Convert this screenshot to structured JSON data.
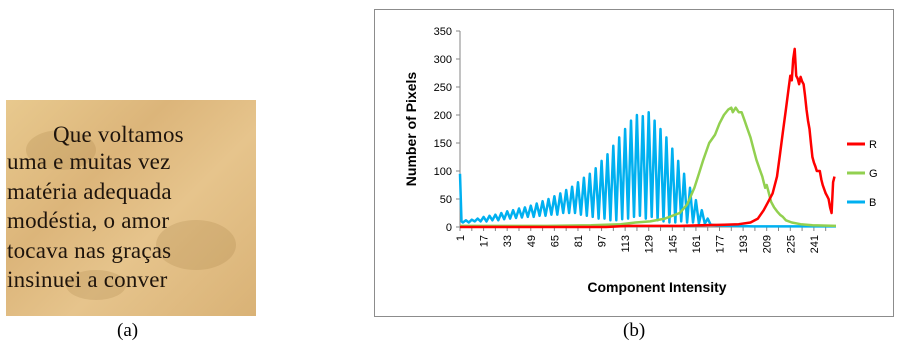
{
  "panel_a": {
    "lines": [
      "Que  voltamos",
      "uma e muitas vez",
      "matéria adequada",
      "modéstia, o amor",
      "tocava nas graças",
      "insinuei  a  conver"
    ],
    "caption": "(a)"
  },
  "panel_b": {
    "caption": "(b)"
  },
  "chart_data": {
    "type": "line",
    "title": "",
    "xlabel": "Component Intensity",
    "ylabel": "Number of Pixels",
    "xlim": [
      1,
      256
    ],
    "ylim": [
      0,
      350
    ],
    "y_ticks": [
      0,
      50,
      100,
      150,
      200,
      250,
      300,
      350
    ],
    "x_ticks": [
      1,
      17,
      33,
      49,
      65,
      81,
      97,
      113,
      129,
      145,
      161,
      177,
      193,
      209,
      225,
      241
    ],
    "grid": false,
    "legend_position": "right",
    "series": [
      {
        "name": "R",
        "color": "#ff0000",
        "points": [
          [
            1,
            0
          ],
          [
            100,
            0
          ],
          [
            115,
            2
          ],
          [
            130,
            2
          ],
          [
            150,
            2
          ],
          [
            165,
            3
          ],
          [
            180,
            4
          ],
          [
            190,
            5
          ],
          [
            198,
            8
          ],
          [
            203,
            15
          ],
          [
            207,
            30
          ],
          [
            210,
            45
          ],
          [
            213,
            60
          ],
          [
            216,
            90
          ],
          [
            218,
            130
          ],
          [
            220,
            170
          ],
          [
            222,
            210
          ],
          [
            224,
            250
          ],
          [
            225,
            270
          ],
          [
            226,
            262
          ],
          [
            227,
            300
          ],
          [
            228,
            318
          ],
          [
            229,
            270
          ],
          [
            230,
            265
          ],
          [
            231,
            255
          ],
          [
            232,
            268
          ],
          [
            233,
            260
          ],
          [
            234,
            255
          ],
          [
            235,
            235
          ],
          [
            236,
            210
          ],
          [
            237,
            190
          ],
          [
            238,
            175
          ],
          [
            239,
            150
          ],
          [
            240,
            125
          ],
          [
            241,
            115
          ],
          [
            242,
            108
          ],
          [
            243,
            100
          ],
          [
            244,
            100
          ],
          [
            245,
            100
          ],
          [
            246,
            85
          ],
          [
            247,
            75
          ],
          [
            249,
            60
          ],
          [
            250,
            55
          ],
          [
            251,
            50
          ],
          [
            252,
            35
          ],
          [
            253,
            25
          ],
          [
            254,
            80
          ],
          [
            255,
            90
          ]
        ]
      },
      {
        "name": "G",
        "color": "#92d050",
        "points": [
          [
            1,
            2
          ],
          [
            60,
            2
          ],
          [
            90,
            3
          ],
          [
            110,
            5
          ],
          [
            120,
            8
          ],
          [
            130,
            10
          ],
          [
            140,
            15
          ],
          [
            150,
            25
          ],
          [
            155,
            40
          ],
          [
            160,
            70
          ],
          [
            163,
            95
          ],
          [
            166,
            120
          ],
          [
            170,
            150
          ],
          [
            174,
            165
          ],
          [
            177,
            185
          ],
          [
            180,
            200
          ],
          [
            183,
            210
          ],
          [
            185,
            213
          ],
          [
            186,
            205
          ],
          [
            188,
            213
          ],
          [
            190,
            205
          ],
          [
            192,
            205
          ],
          [
            194,
            190
          ],
          [
            196,
            175
          ],
          [
            198,
            160
          ],
          [
            200,
            140
          ],
          [
            202,
            120
          ],
          [
            204,
            105
          ],
          [
            206,
            90
          ],
          [
            207,
            80
          ],
          [
            208,
            70
          ],
          [
            209,
            75
          ],
          [
            210,
            65
          ],
          [
            212,
            45
          ],
          [
            214,
            35
          ],
          [
            216,
            28
          ],
          [
            218,
            22
          ],
          [
            220,
            18
          ],
          [
            222,
            12
          ],
          [
            226,
            8
          ],
          [
            232,
            5
          ],
          [
            240,
            3
          ],
          [
            256,
            2
          ]
        ]
      },
      {
        "name": "B",
        "color": "#00b0f0",
        "points": [
          [
            1,
            95
          ],
          [
            2,
            10
          ],
          [
            3,
            8
          ],
          [
            5,
            12
          ],
          [
            7,
            8
          ],
          [
            9,
            13
          ],
          [
            11,
            10
          ],
          [
            13,
            15
          ],
          [
            15,
            10
          ],
          [
            17,
            18
          ],
          [
            19,
            10
          ],
          [
            21,
            20
          ],
          [
            23,
            12
          ],
          [
            25,
            22
          ],
          [
            27,
            12
          ],
          [
            29,
            25
          ],
          [
            31,
            14
          ],
          [
            33,
            28
          ],
          [
            35,
            15
          ],
          [
            37,
            30
          ],
          [
            39,
            16
          ],
          [
            41,
            33
          ],
          [
            43,
            17
          ],
          [
            45,
            35
          ],
          [
            47,
            18
          ],
          [
            49,
            38
          ],
          [
            51,
            18
          ],
          [
            53,
            42
          ],
          [
            55,
            20
          ],
          [
            57,
            46
          ],
          [
            59,
            20
          ],
          [
            61,
            50
          ],
          [
            63,
            22
          ],
          [
            65,
            55
          ],
          [
            67,
            22
          ],
          [
            69,
            60
          ],
          [
            71,
            25
          ],
          [
            73,
            66
          ],
          [
            75,
            25
          ],
          [
            77,
            72
          ],
          [
            79,
            25
          ],
          [
            81,
            80
          ],
          [
            83,
            22
          ],
          [
            85,
            88
          ],
          [
            87,
            20
          ],
          [
            89,
            95
          ],
          [
            91,
            18
          ],
          [
            93,
            105
          ],
          [
            95,
            15
          ],
          [
            97,
            118
          ],
          [
            99,
            15
          ],
          [
            101,
            130
          ],
          [
            103,
            12
          ],
          [
            105,
            145
          ],
          [
            107,
            12
          ],
          [
            109,
            160
          ],
          [
            111,
            14
          ],
          [
            113,
            175
          ],
          [
            115,
            15
          ],
          [
            117,
            190
          ],
          [
            119,
            18
          ],
          [
            121,
            200
          ],
          [
            123,
            20
          ],
          [
            125,
            198
          ],
          [
            127,
            15
          ],
          [
            129,
            205
          ],
          [
            131,
            18
          ],
          [
            133,
            190
          ],
          [
            135,
            12
          ],
          [
            137,
            175
          ],
          [
            139,
            10
          ],
          [
            141,
            160
          ],
          [
            143,
            8
          ],
          [
            145,
            140
          ],
          [
            147,
            8
          ],
          [
            149,
            118
          ],
          [
            151,
            10
          ],
          [
            153,
            95
          ],
          [
            155,
            8
          ],
          [
            157,
            70
          ],
          [
            159,
            8
          ],
          [
            161,
            48
          ],
          [
            163,
            6
          ],
          [
            165,
            30
          ],
          [
            167,
            6
          ],
          [
            169,
            15
          ],
          [
            171,
            4
          ],
          [
            175,
            3
          ],
          [
            185,
            2
          ],
          [
            200,
            1
          ],
          [
            256,
            1
          ]
        ]
      }
    ]
  }
}
